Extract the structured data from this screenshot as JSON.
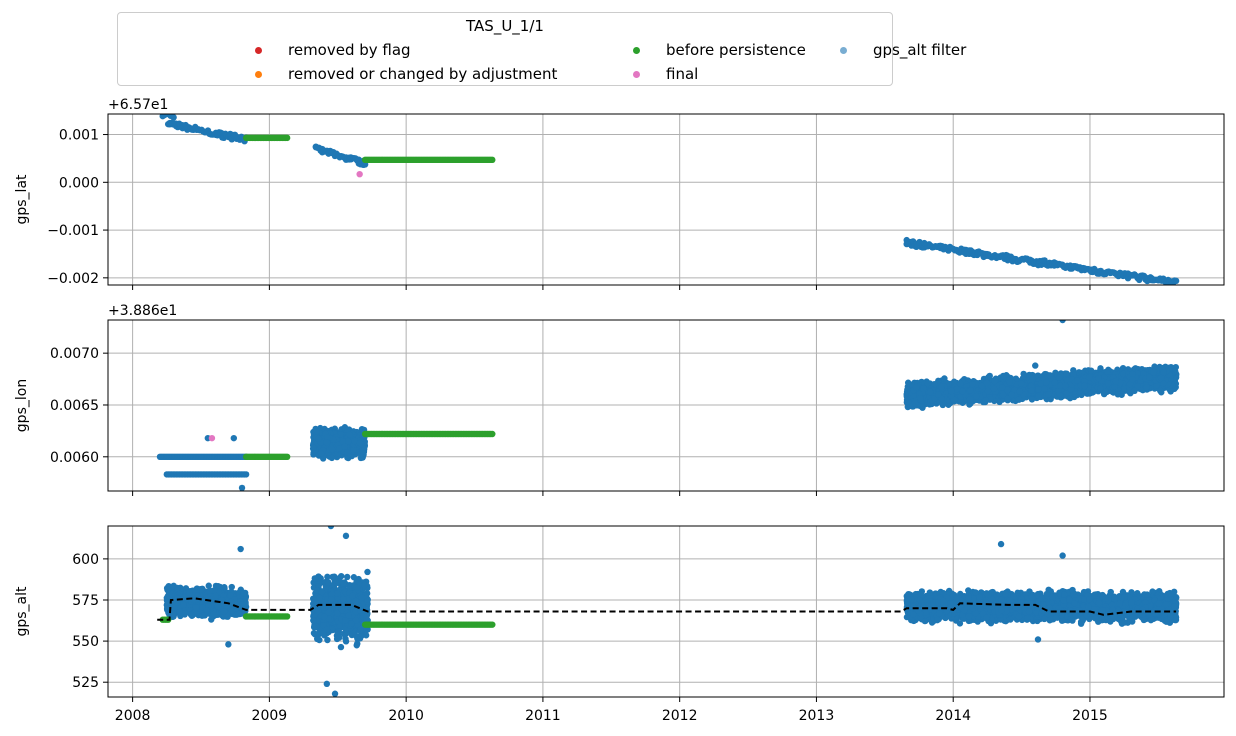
{
  "legend": {
    "title": "TAS_U_1/1",
    "items": [
      {
        "label": "removed by flag",
        "color": "#d62728"
      },
      {
        "label": "removed or changed by adjustment",
        "color": "#ff7f0e"
      },
      {
        "label": "before persistence",
        "color": "#2ca02c"
      },
      {
        "label": "final",
        "color": "#e377c2"
      },
      {
        "label": "gps_alt filter",
        "color": "#1f77b4"
      }
    ]
  },
  "colors": {
    "filter": "#1f77b4",
    "before": "#2ca02c",
    "final": "#e377c2",
    "mean": "#000000",
    "grid": "#b0b0b0"
  },
  "chart_data": [
    {
      "type": "scatter",
      "ylabel": "gps_lat",
      "offset_label": "+6.57e1",
      "ylim": [
        -0.00215,
        0.00143
      ],
      "yticks": [
        0.001,
        0.0,
        -0.001,
        -0.002
      ],
      "ytick_labels": [
        "0.001",
        "0.000",
        "−0.001",
        "−0.002"
      ],
      "xlim": [
        2007.82,
        2015.98
      ],
      "grid": true,
      "series": [
        {
          "name": "gps_alt filter",
          "segments": [
            [
              2008.22,
              2008.3,
              0.00143,
              0.0014
            ],
            [
              2008.26,
              2008.83,
              0.00122,
              0.0009
            ],
            [
              2009.34,
              2009.7,
              0.0007,
              0.0004
            ],
            [
              2013.66,
              2015.63,
              -0.00127,
              -0.0021
            ]
          ]
        },
        {
          "name": "before persistence",
          "segments": [
            [
              2008.83,
              2009.13,
              0.00093,
              0.00093
            ],
            [
              2009.7,
              2010.63,
              0.00047,
              0.00047
            ]
          ]
        },
        {
          "name": "final",
          "points": [
            [
              2009.66,
              0.00017
            ]
          ]
        }
      ]
    },
    {
      "type": "scatter",
      "ylabel": "gps_lon",
      "offset_label": "+3.886e1",
      "ylim": [
        0.00567,
        0.00732
      ],
      "yticks": [
        0.007,
        0.0065,
        0.006
      ],
      "ytick_labels": [
        "0.0070",
        "0.0065",
        "0.0060"
      ],
      "xlim": [
        2007.82,
        2015.98
      ],
      "grid": true,
      "series": [
        {
          "name": "gps_alt filter",
          "lines": [
            [
              2008.2,
              2008.83,
              0.006
            ],
            [
              2008.25,
              2008.83,
              0.00583
            ]
          ],
          "clusters": [
            [
              2009.32,
              2009.7,
              0.00596,
              0.0063
            ],
            [
              2013.66,
              2015.63,
              0.00653,
              0.00683
            ]
          ],
          "points": [
            [
              2008.74,
              0.00618
            ],
            [
              2008.55,
              0.00618
            ],
            [
              2008.8,
              0.0057
            ],
            [
              2014.8,
              0.00732
            ],
            [
              2014.6,
              0.00688
            ]
          ]
        },
        {
          "name": "before persistence",
          "lines": [
            [
              2008.83,
              2009.13,
              0.006
            ],
            [
              2009.7,
              2010.63,
              0.00622
            ]
          ]
        },
        {
          "name": "final",
          "points": [
            [
              2008.58,
              0.00618
            ]
          ]
        }
      ]
    },
    {
      "type": "scatter",
      "ylabel": "gps_alt",
      "ylim": [
        516,
        620
      ],
      "yticks": [
        600,
        575,
        550,
        525
      ],
      "ytick_labels": [
        "600",
        "575",
        "550",
        "525"
      ],
      "xlim": [
        2007.82,
        2015.98
      ],
      "xticks": [
        2008,
        2009,
        2010,
        2011,
        2012,
        2013,
        2014,
        2015
      ],
      "xtick_labels": [
        "2008",
        "2009",
        "2010",
        "2011",
        "2012",
        "2013",
        "2014",
        "2015"
      ],
      "grid": true,
      "series": [
        {
          "name": "gps_alt filter",
          "clusters": [
            [
              2008.25,
              2008.83,
              562,
              585
            ],
            [
              2009.32,
              2009.72,
              545,
              595
            ],
            [
              2013.66,
              2015.63,
              560,
              582
            ]
          ],
          "points": [
            [
              2008.79,
              606
            ],
            [
              2009.45,
              620
            ],
            [
              2009.56,
              614
            ],
            [
              2009.42,
              524
            ],
            [
              2009.48,
              518
            ],
            [
              2014.35,
              609
            ],
            [
              2014.8,
              602
            ],
            [
              2008.7,
              548
            ],
            [
              2014.62,
              551
            ]
          ]
        },
        {
          "name": "before persistence",
          "lines": [
            [
              2008.22,
              2008.26,
              563
            ],
            [
              2008.83,
              2009.13,
              565
            ],
            [
              2009.7,
              2010.63,
              560
            ]
          ]
        },
        {
          "name": "mean",
          "line": [
            [
              2008.18,
              563
            ],
            [
              2008.27,
              563
            ],
            [
              2008.28,
              575
            ],
            [
              2008.45,
              576
            ],
            [
              2008.7,
              573
            ],
            [
              2008.83,
              569
            ],
            [
              2009.3,
              569
            ],
            [
              2009.36,
              572
            ],
            [
              2009.6,
              572
            ],
            [
              2009.72,
              568
            ],
            [
              2013.62,
              568
            ],
            [
              2013.66,
              570
            ],
            [
              2013.95,
              570
            ],
            [
              2014.0,
              569
            ],
            [
              2014.05,
              573
            ],
            [
              2014.4,
              572
            ],
            [
              2014.6,
              572
            ],
            [
              2014.7,
              568
            ],
            [
              2015.0,
              568
            ],
            [
              2015.1,
              566
            ],
            [
              2015.3,
              568
            ],
            [
              2015.63,
              568
            ]
          ]
        }
      ]
    }
  ]
}
